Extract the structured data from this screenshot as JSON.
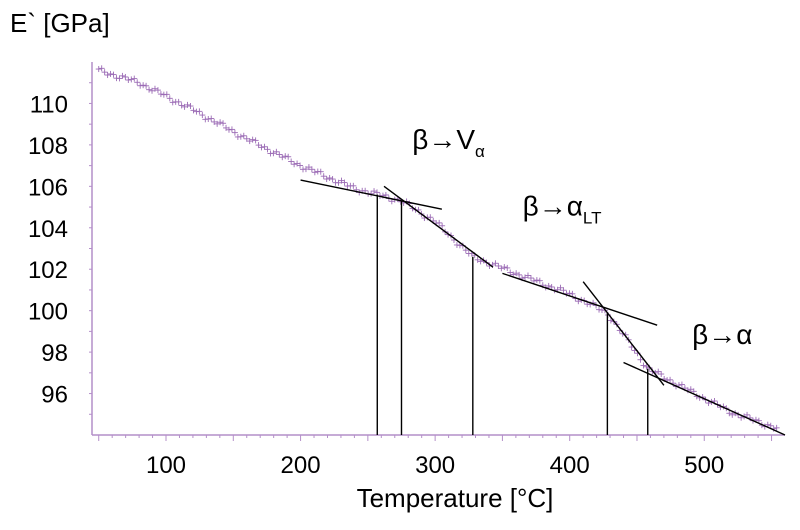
{
  "chart_data": {
    "type": "scatter",
    "ylabel": "E` [GPa]",
    "xlabel": "Temperature [°C]",
    "xlim": [
      45,
      560
    ],
    "ylim": [
      94,
      112
    ],
    "xticks": [
      100,
      200,
      300,
      400,
      500
    ],
    "yticks": [
      96,
      98,
      100,
      102,
      104,
      106,
      108,
      110
    ],
    "marker_color": "#9b6bb5",
    "line_color": "#000000",
    "series": [
      {
        "name": "E`",
        "anchors": [
          [
            50,
            111.6
          ],
          [
            80,
            111.0
          ],
          [
            120,
            109.7
          ],
          [
            160,
            108.3
          ],
          [
            200,
            107.0
          ],
          [
            240,
            105.9
          ],
          [
            275,
            105.3
          ],
          [
            300,
            104.3
          ],
          [
            328,
            102.6
          ],
          [
            360,
            101.8
          ],
          [
            400,
            100.8
          ],
          [
            428,
            99.9
          ],
          [
            445,
            98.4
          ],
          [
            458,
            97.2
          ],
          [
            490,
            96.1
          ],
          [
            520,
            95.1
          ],
          [
            555,
            94.3
          ]
        ]
      }
    ],
    "tangents": [
      {
        "from": [
          200,
          106.3
        ],
        "to": [
          305,
          104.9
        ]
      },
      {
        "from": [
          262,
          106.0
        ],
        "to": [
          343,
          102.1
        ]
      },
      {
        "from": [
          350,
          101.8
        ],
        "to": [
          465,
          99.3
        ]
      },
      {
        "from": [
          410,
          101.4
        ],
        "to": [
          470,
          96.4
        ]
      },
      {
        "from": [
          440,
          97.5
        ],
        "to": [
          560,
          94.0
        ]
      }
    ],
    "droplines": [
      {
        "x": 257,
        "y": 105.6
      },
      {
        "x": 275,
        "y": 105.3
      },
      {
        "x": 328,
        "y": 102.6
      },
      {
        "x": 428,
        "y": 99.9
      },
      {
        "x": 458,
        "y": 97.2
      }
    ],
    "annotations": [
      {
        "main": "β→V",
        "sub": "α",
        "x": 283,
        "y": 107.8
      },
      {
        "main": "β→α",
        "sub": "LT",
        "x": 365,
        "y": 104.6
      },
      {
        "main": "β→α",
        "sub": "",
        "x": 491,
        "y": 98.4
      }
    ]
  }
}
